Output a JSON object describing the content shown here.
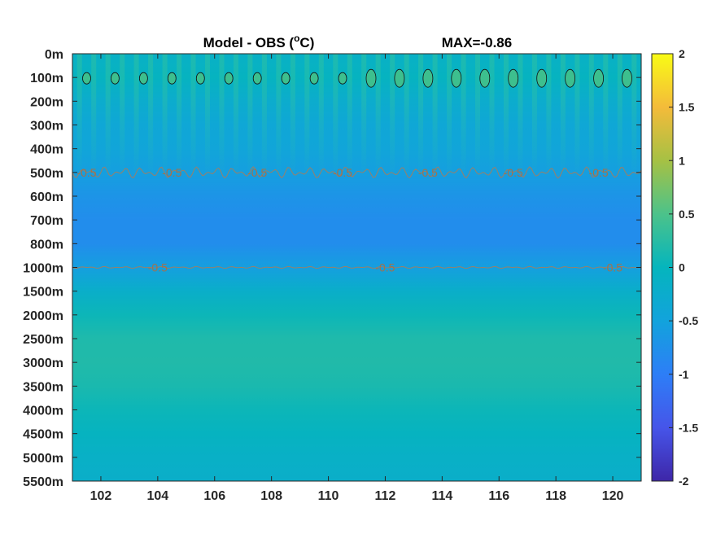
{
  "chart_data": {
    "type": "heatmap",
    "title": "Model - OBS (°C)",
    "title_prefix": "Model - OBS (",
    "title_sup": "o",
    "title_suffix": "C)",
    "annotation": "MAX=-0.86",
    "x_ticks": [
      102,
      104,
      106,
      108,
      110,
      112,
      114,
      116,
      118,
      120
    ],
    "xlim": [
      101,
      121
    ],
    "y_ticks": [
      "0m",
      "100m",
      "200m",
      "300m",
      "400m",
      "500m",
      "600m",
      "700m",
      "800m",
      "1000m",
      "1500m",
      "2000m",
      "2500m",
      "3000m",
      "3500m",
      "4000m",
      "4500m",
      "5000m",
      "5500m"
    ],
    "y_direction": "reversed",
    "colorbar": {
      "ticks": [
        "2",
        "1.5",
        "1",
        "0.5",
        "0",
        "-0.5",
        "-1",
        "-1.5",
        "-2"
      ],
      "range": [
        -2,
        2
      ],
      "colormap": "parula"
    },
    "depth_profile": [
      {
        "depth": "0m",
        "value": -0.15
      },
      {
        "depth": "100m",
        "value": -0.05
      },
      {
        "depth": "200m",
        "value": -0.25
      },
      {
        "depth": "300m",
        "value": -0.4
      },
      {
        "depth": "400m",
        "value": -0.45
      },
      {
        "depth": "500m",
        "value": -0.55
      },
      {
        "depth": "600m",
        "value": -0.7
      },
      {
        "depth": "700m",
        "value": -0.8
      },
      {
        "depth": "800m",
        "value": -0.8
      },
      {
        "depth": "1000m",
        "value": -0.55
      },
      {
        "depth": "1500m",
        "value": -0.2
      },
      {
        "depth": "2000m",
        "value": 0.05
      },
      {
        "depth": "2500m",
        "value": 0.18
      },
      {
        "depth": "3000m",
        "value": 0.2
      },
      {
        "depth": "3500m",
        "value": 0.15
      },
      {
        "depth": "4000m",
        "value": 0.05
      },
      {
        "depth": "4500m",
        "value": -0.05
      },
      {
        "depth": "5000m",
        "value": -0.15
      },
      {
        "depth": "5500m",
        "value": -0.2
      }
    ],
    "contours": [
      {
        "level": "-0.5",
        "depth": "500m",
        "label_x": [
          101.5,
          104.5,
          107.5,
          110.5,
          113.5,
          116.5,
          119.5
        ]
      },
      {
        "level": "-0.5",
        "depth": "1000m",
        "label_x": [
          104,
          112,
          120
        ]
      }
    ],
    "positive_blob_x": [
      101.5,
      102.5,
      103.5,
      104.5,
      105.5,
      106.5,
      107.5,
      108.5,
      109.5,
      110.5,
      111.5,
      112.5,
      113.5,
      114.5,
      115.5,
      116.5,
      117.5,
      118.5,
      119.5,
      120.5
    ],
    "grid": false
  }
}
